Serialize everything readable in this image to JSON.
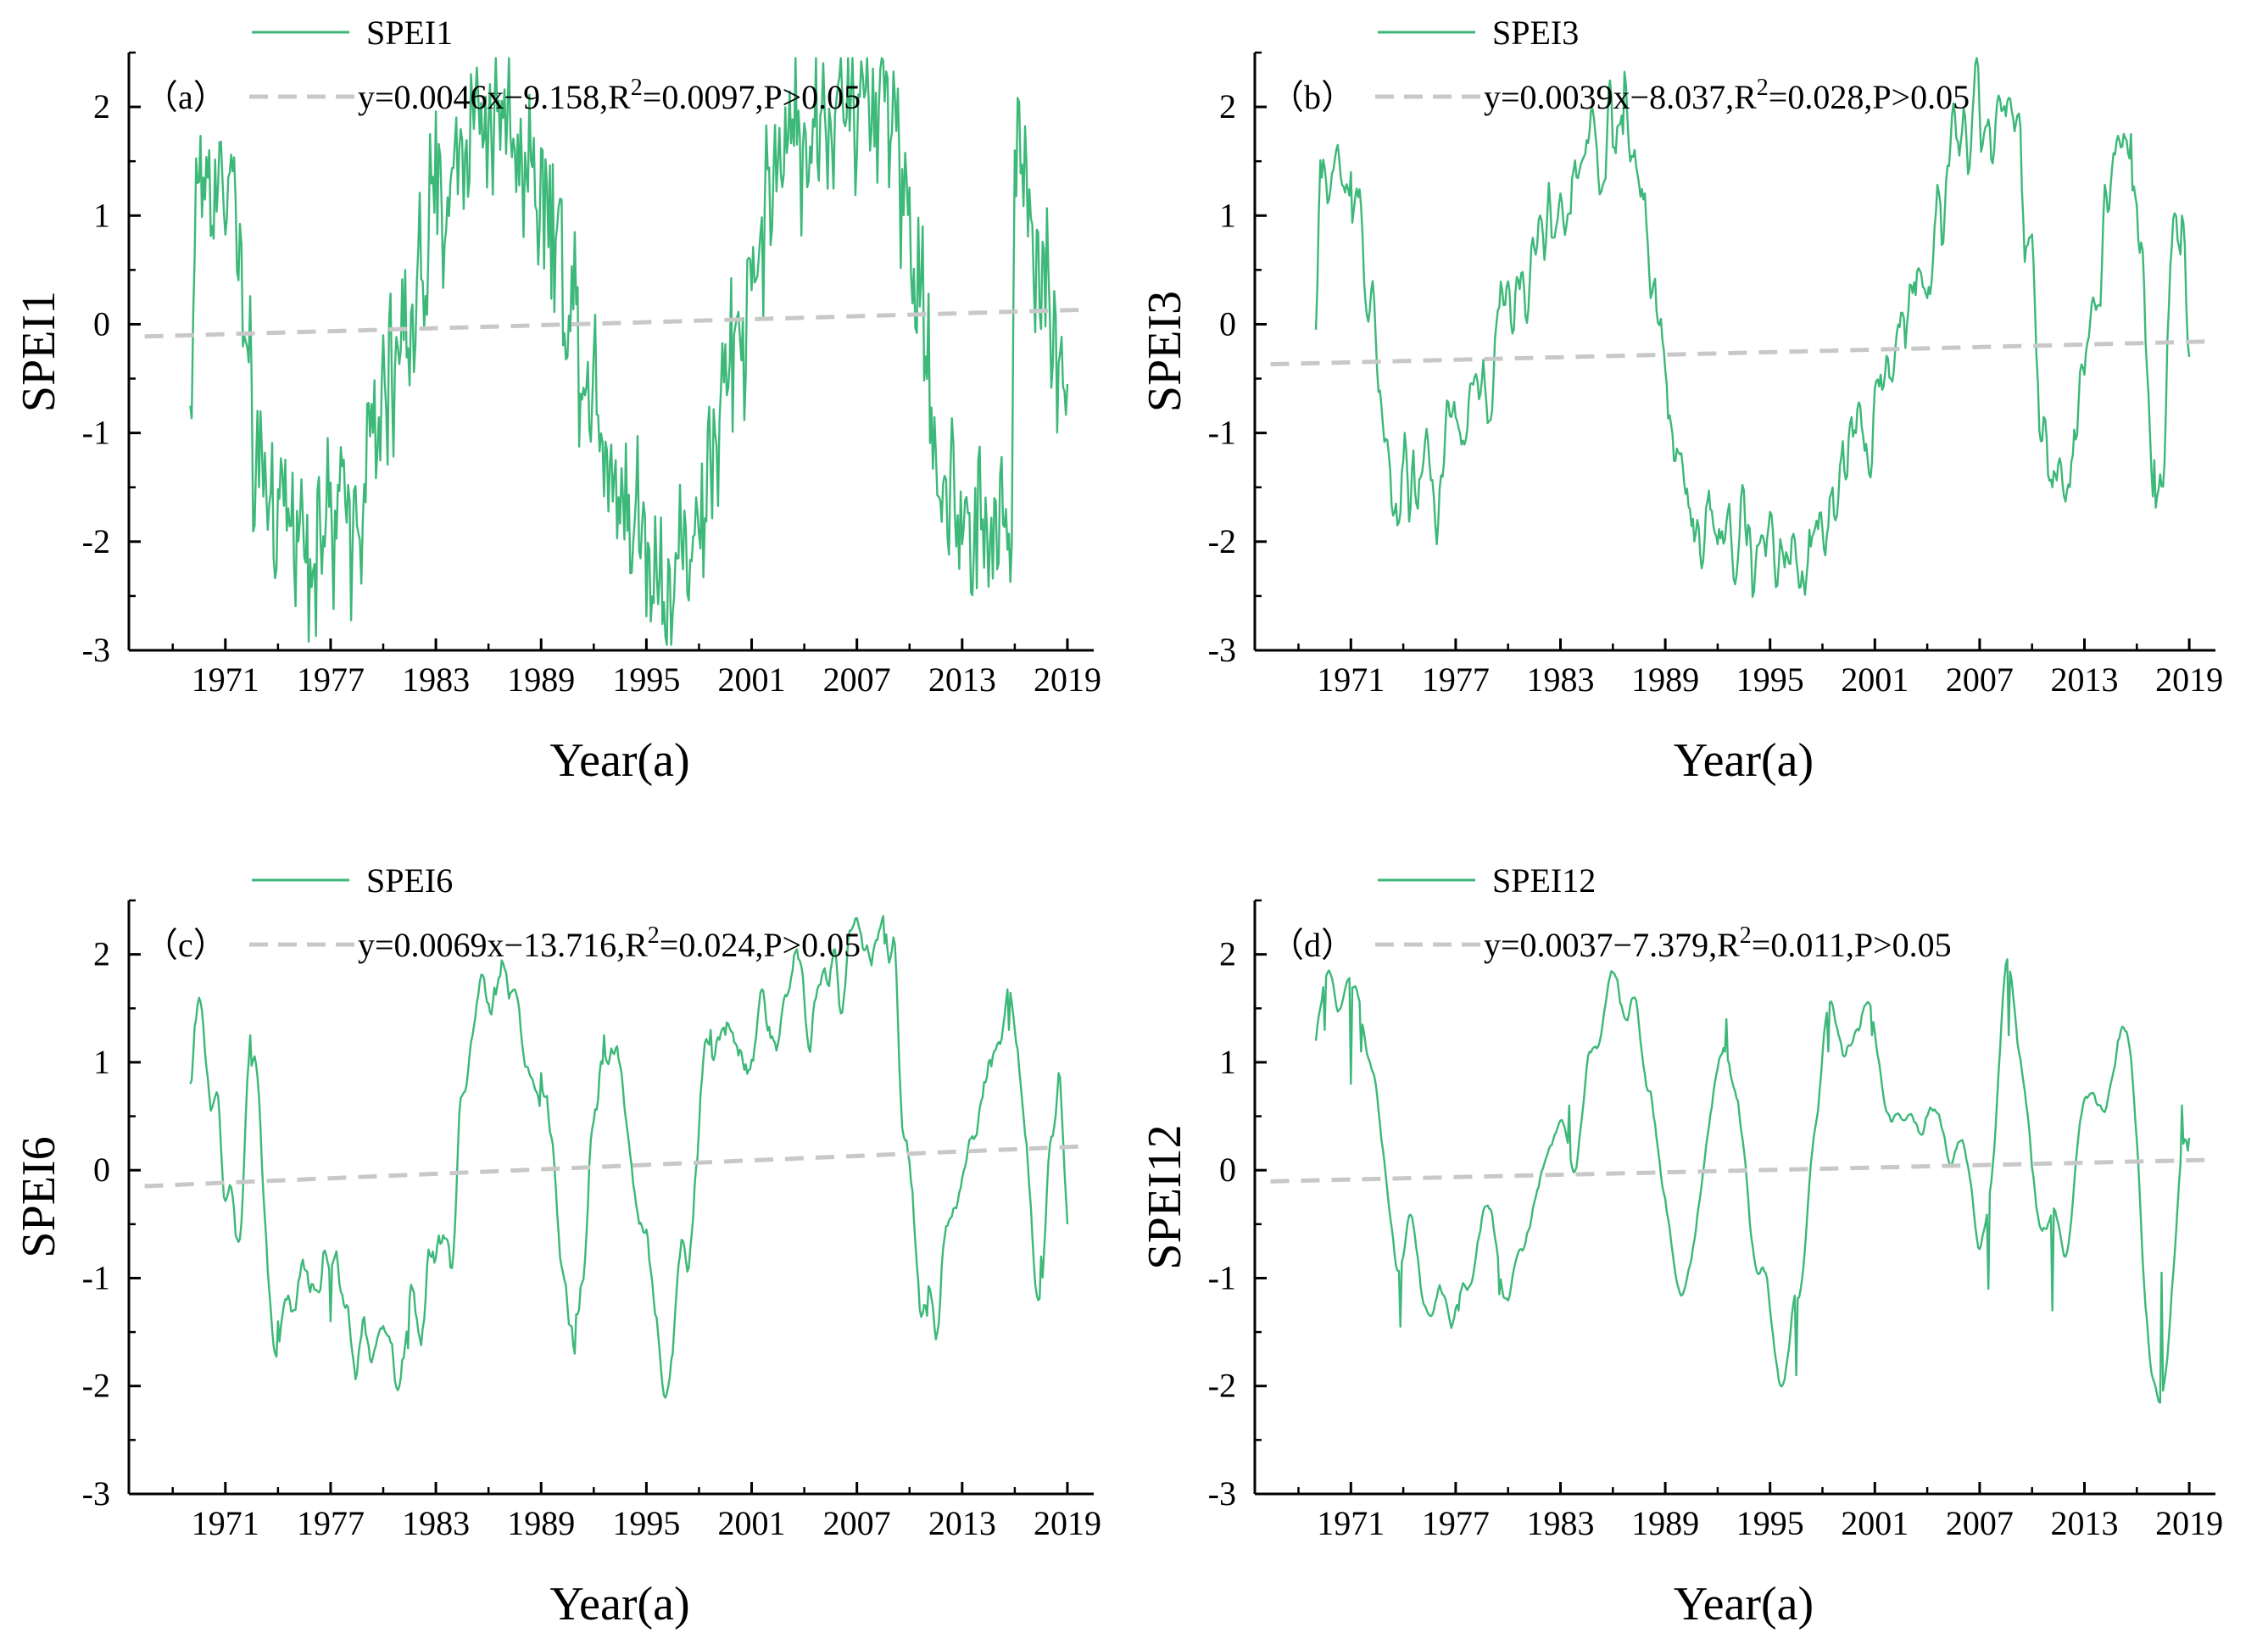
{
  "chart_data": [
    {
      "type": "line",
      "panel_label": "（a）",
      "series_name": "SPEI1",
      "series_color": "#3cb878",
      "trend_color": "#c8c8c8",
      "trend_label": {
        "prefix": "y=0.0046x−9.158,R",
        "sup": "2",
        "suffix": "=0.0097,P>0.05"
      },
      "trend": {
        "slope": 0.0046,
        "intercept": -9.158,
        "r2": 0.0097
      },
      "x_range": [
        1965.5,
        2020.5
      ],
      "data_start": 1969.0,
      "data_end": 2019.0,
      "ylim": [
        -3,
        2.5
      ],
      "xticks": [
        1971,
        1977,
        1983,
        1989,
        1995,
        2001,
        2007,
        2013,
        2019
      ],
      "yticks": [
        -3,
        -2,
        -1,
        0,
        1,
        2
      ],
      "xlabel": "Year(a)",
      "ylabel": "SPEI1",
      "smoothing": 1,
      "volatility": 0.8,
      "step": 0.17,
      "key_points": [
        {
          "x": 1969.0,
          "y": -0.75
        },
        {
          "x": 1969.4,
          "y": 1.3
        },
        {
          "x": 1971.2,
          "y": 1.35
        },
        {
          "x": 1972.9,
          "y": -1.5
        },
        {
          "x": 1976.6,
          "y": -1.95
        },
        {
          "x": 1986.3,
          "y": 2.0
        },
        {
          "x": 1996.3,
          "y": -2.25
        },
        {
          "x": 2004.0,
          "y": 1.85
        },
        {
          "x": 2008.6,
          "y": 2.05
        },
        {
          "x": 2012.6,
          "y": -1.75
        },
        {
          "x": 2015.8,
          "y": -2.0
        },
        {
          "x": 2016.0,
          "y": 1.6
        },
        {
          "x": 2019.0,
          "y": -0.55
        }
      ]
    },
    {
      "type": "line",
      "panel_label": "（b）",
      "series_name": "SPEI3",
      "series_color": "#3cb878",
      "trend_color": "#c8c8c8",
      "trend_label": {
        "prefix": "y=0.0039x−8.037,R",
        "sup": "2",
        "suffix": "=0.028,P>0.05"
      },
      "trend": {
        "slope": 0.0039,
        "intercept": -8.037,
        "r2": 0.028
      },
      "x_range": [
        1965.5,
        2020.5
      ],
      "data_start": 1969.0,
      "data_end": 2019.0,
      "ylim": [
        -3,
        2.5
      ],
      "xticks": [
        1971,
        1977,
        1983,
        1989,
        1995,
        2001,
        2007,
        2013,
        2019
      ],
      "yticks": [
        -3,
        -2,
        -1,
        0,
        1,
        2
      ],
      "xlabel": "Year(a)",
      "ylabel": "SPEI3",
      "smoothing": 3,
      "volatility": 0.6,
      "step": 0.15,
      "key_points": [
        {
          "x": 1969.0,
          "y": -0.05
        },
        {
          "x": 1969.3,
          "y": 1.35
        },
        {
          "x": 1971.0,
          "y": 1.4
        },
        {
          "x": 1973.6,
          "y": -1.65
        },
        {
          "x": 1986.6,
          "y": 1.75
        },
        {
          "x": 1990.8,
          "y": -1.8
        },
        {
          "x": 1996.1,
          "y": -2.2
        },
        {
          "x": 2008.6,
          "y": 2.05
        },
        {
          "x": 2011.2,
          "y": -1.5
        },
        {
          "x": 2015.7,
          "y": 1.75
        },
        {
          "x": 2017.0,
          "y": -1.25
        },
        {
          "x": 2018.6,
          "y": 1.0
        },
        {
          "x": 2019.0,
          "y": -0.3
        }
      ]
    },
    {
      "type": "line",
      "panel_label": "（c）",
      "series_name": "SPEI6",
      "series_color": "#3cb878",
      "trend_color": "#c8c8c8",
      "trend_label": {
        "prefix": "y=0.0069x−13.716,R",
        "sup": "2",
        "suffix": "=0.024,P>0.05"
      },
      "trend": {
        "slope": 0.0069,
        "intercept": -13.716,
        "r2": 0.024
      },
      "x_range": [
        1965.5,
        2020.5
      ],
      "data_start": 1969.0,
      "data_end": 2019.0,
      "ylim": [
        -3,
        2.5
      ],
      "xticks": [
        1971,
        1977,
        1983,
        1989,
        1995,
        2001,
        2007,
        2013,
        2019
      ],
      "yticks": [
        -3,
        -2,
        -1,
        0,
        1,
        2
      ],
      "xlabel": "Year(a)",
      "ylabel": "SPEI6",
      "smoothing": 5,
      "volatility": 0.5,
      "step": 0.13,
      "key_points": [
        {
          "x": 1969.0,
          "y": 0.8
        },
        {
          "x": 1969.3,
          "y": 1.4
        },
        {
          "x": 1971.6,
          "y": -0.6
        },
        {
          "x": 1972.4,
          "y": 1.25
        },
        {
          "x": 1974.0,
          "y": -1.4
        },
        {
          "x": 1977.0,
          "y": -1.4
        },
        {
          "x": 1981.4,
          "y": -1.65
        },
        {
          "x": 1986.7,
          "y": 1.8
        },
        {
          "x": 1989.0,
          "y": 0.9
        },
        {
          "x": 1990.9,
          "y": -1.7
        },
        {
          "x": 1992.6,
          "y": 1.25
        },
        {
          "x": 1996.5,
          "y": -1.7
        },
        {
          "x": 1998.7,
          "y": 1.3
        },
        {
          "x": 2008.6,
          "y": 2.1
        },
        {
          "x": 2011.0,
          "y": -1.35
        },
        {
          "x": 2015.7,
          "y": 1.3
        },
        {
          "x": 2017.5,
          "y": -0.8
        },
        {
          "x": 2018.5,
          "y": 0.9
        },
        {
          "x": 2019.0,
          "y": -0.5
        }
      ]
    },
    {
      "type": "line",
      "panel_label": "（d）",
      "series_name": "SPEI12",
      "series_color": "#3cb878",
      "trend_color": "#c8c8c8",
      "trend_label": {
        "prefix": "y=0.0037−7.379,R",
        "sup": "2",
        "suffix": "=0.011,P>0.05"
      },
      "trend": {
        "slope": 0.0037,
        "intercept": -7.379,
        "r2": 0.011
      },
      "x_range": [
        1965.5,
        2020.5
      ],
      "data_start": 1969.0,
      "data_end": 2019.0,
      "ylim": [
        -3,
        2.5
      ],
      "xticks": [
        1971,
        1977,
        1983,
        1989,
        1995,
        2001,
        2007,
        2013,
        2019
      ],
      "yticks": [
        -3,
        -2,
        -1,
        0,
        1,
        2
      ],
      "xlabel": "Year(a)",
      "ylabel": "SPEI12",
      "smoothing": 8,
      "volatility": 0.35,
      "step": 0.1,
      "key_points": [
        {
          "x": 1969.0,
          "y": 1.2
        },
        {
          "x": 1969.5,
          "y": 1.3
        },
        {
          "x": 1971.0,
          "y": 0.8
        },
        {
          "x": 1971.6,
          "y": 1.1
        },
        {
          "x": 1973.8,
          "y": -1.45
        },
        {
          "x": 1977.2,
          "y": -1.3
        },
        {
          "x": 1979.5,
          "y": -1.15
        },
        {
          "x": 1983.5,
          "y": 0.6
        },
        {
          "x": 1986.4,
          "y": 1.55
        },
        {
          "x": 1990.0,
          "y": -1.15
        },
        {
          "x": 1992.5,
          "y": 1.4
        },
        {
          "x": 1996.5,
          "y": -1.9
        },
        {
          "x": 1998.3,
          "y": 1.1
        },
        {
          "x": 2000.8,
          "y": 1.25
        },
        {
          "x": 2007.5,
          "y": -1.1
        },
        {
          "x": 2008.7,
          "y": 1.25
        },
        {
          "x": 2011.2,
          "y": -1.3
        },
        {
          "x": 2014.9,
          "y": 1.2
        },
        {
          "x": 2017.4,
          "y": -0.95
        },
        {
          "x": 2018.6,
          "y": 0.6
        },
        {
          "x": 2019.0,
          "y": 0.3
        }
      ]
    }
  ]
}
